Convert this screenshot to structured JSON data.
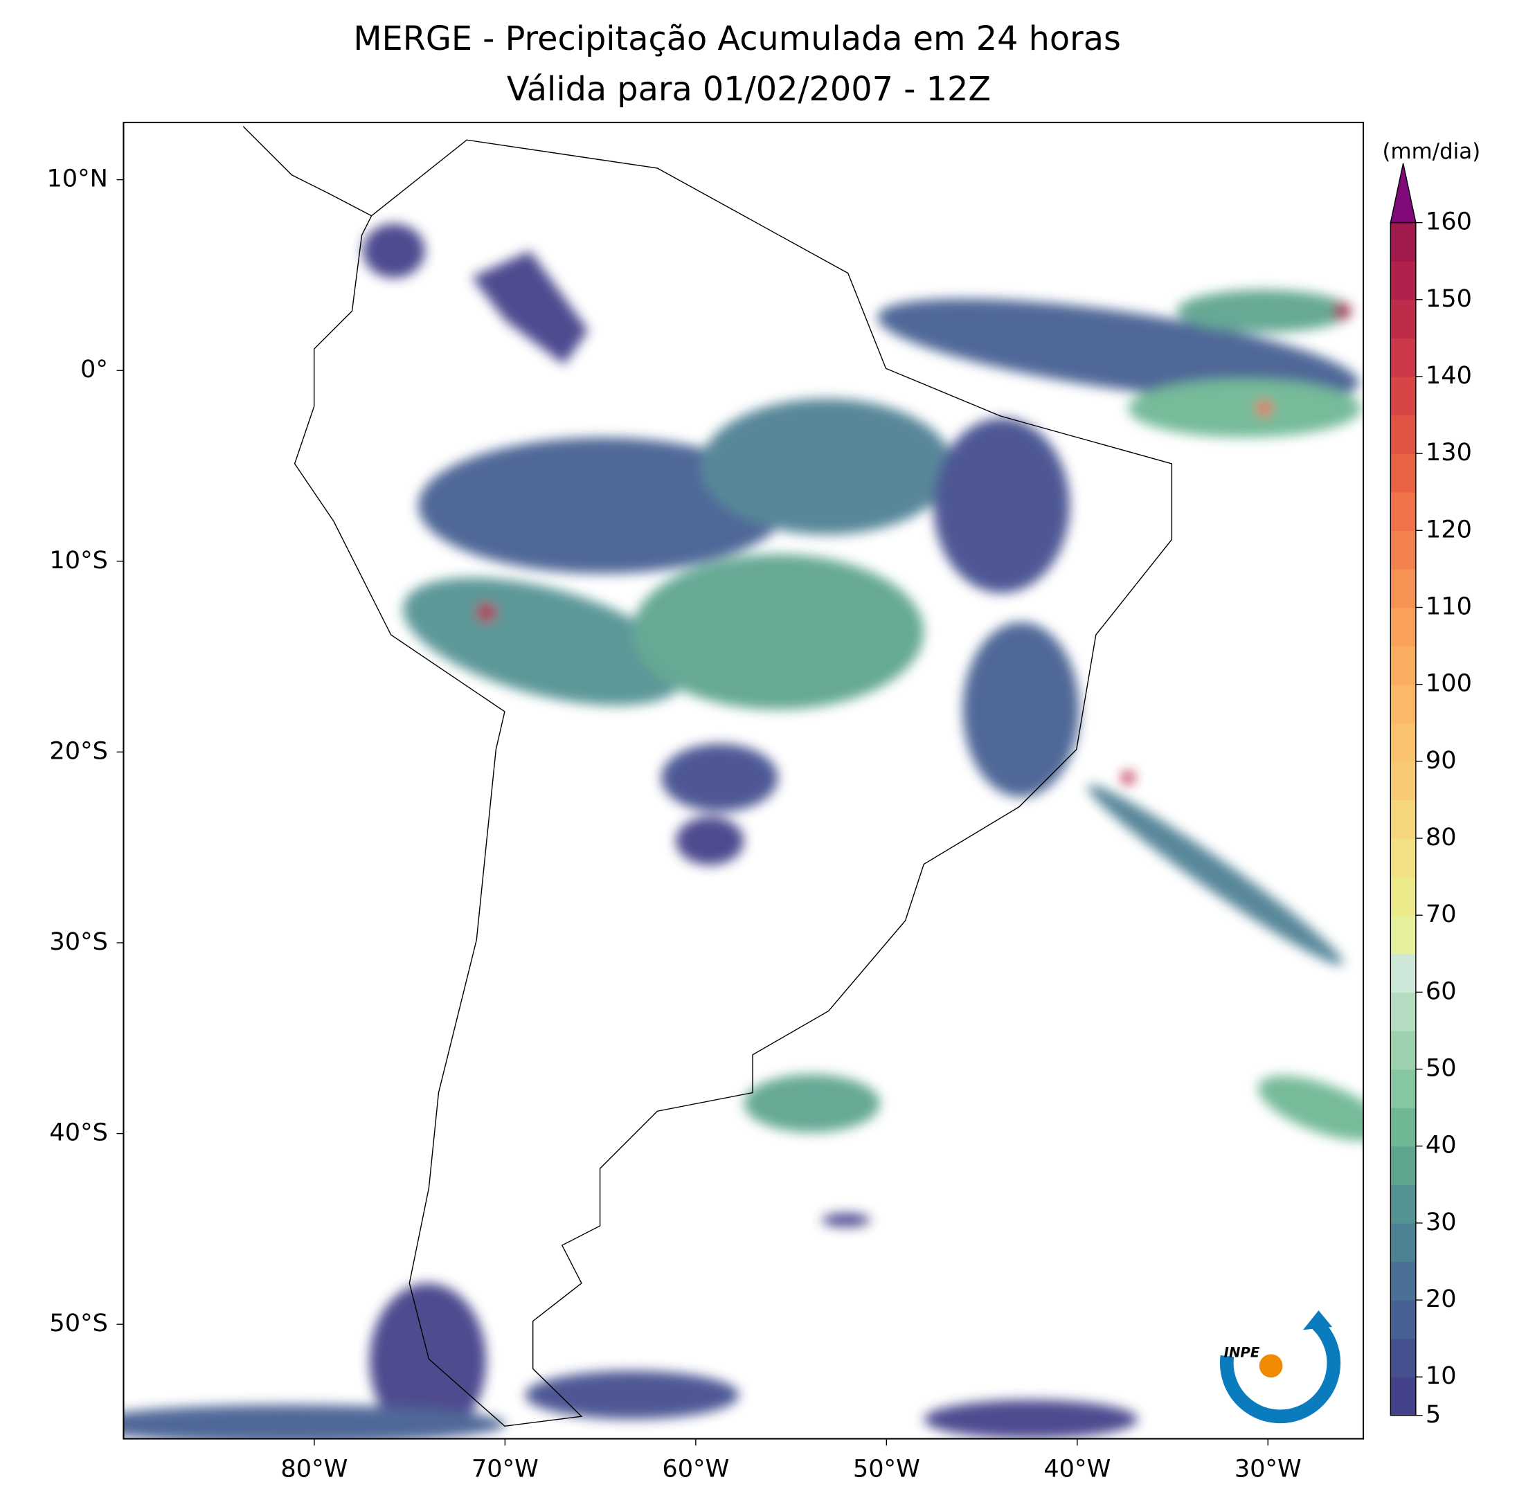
{
  "chart_data": {
    "type": "map",
    "title": "MERGE - Precipitação Acumulada em 24 horas",
    "subtitle": "Válida para 01/02/2007 - 12Z",
    "xlim": [
      -90,
      -25
    ],
    "ylim": [
      -56,
      13
    ],
    "xticks": [
      {
        "value": -80,
        "label": "80°W"
      },
      {
        "value": -70,
        "label": "70°W"
      },
      {
        "value": -60,
        "label": "60°W"
      },
      {
        "value": -50,
        "label": "50°W"
      },
      {
        "value": -40,
        "label": "40°W"
      },
      {
        "value": -30,
        "label": "30°W"
      }
    ],
    "yticks": [
      {
        "value": 10,
        "label": "10°N"
      },
      {
        "value": 0,
        "label": "0°"
      },
      {
        "value": -10,
        "label": "10°S"
      },
      {
        "value": -20,
        "label": "20°S"
      },
      {
        "value": -30,
        "label": "30°S"
      },
      {
        "value": -40,
        "label": "40°S"
      },
      {
        "value": -50,
        "label": "50°S"
      }
    ],
    "colorbar": {
      "label": "(mm/dia)",
      "lim": [
        5,
        160
      ],
      "ticks": [
        5,
        10,
        20,
        30,
        40,
        50,
        60,
        70,
        80,
        90,
        100,
        110,
        120,
        130,
        140,
        150,
        160
      ],
      "colors": [
        "#44428a",
        "#45508f",
        "#466093",
        "#4a7095",
        "#4f8194",
        "#559393",
        "#5fa590",
        "#70b894",
        "#86c6a0",
        "#9dd2ae",
        "#b4dcc0",
        "#cde8d8",
        "#e5ef9c",
        "#ece98b",
        "#f1e084",
        "#f5d67d",
        "#f8ca76",
        "#fac26c",
        "#fbb866",
        "#fbad60",
        "#f9a05a",
        "#f79254",
        "#f4824e",
        "#f07249",
        "#ea6244",
        "#e15342",
        "#d74545",
        "#cc3848",
        "#bf2c4a",
        "#b1214c",
        "#a01a4e"
      ],
      "extend_color": "#800a7a"
    },
    "logo": "INPE"
  }
}
